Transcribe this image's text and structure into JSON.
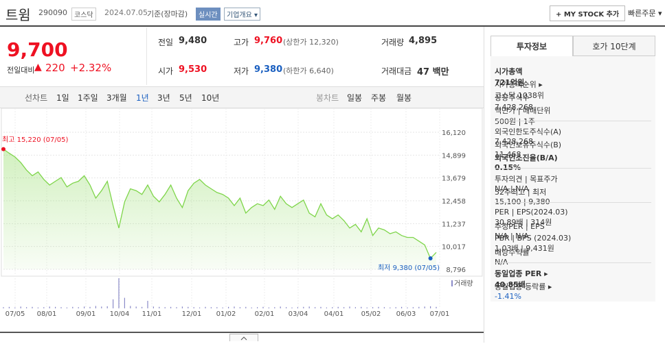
{
  "header": {
    "name": "트윔",
    "code": "290090",
    "market": "코스닥",
    "date": "2024.07.05",
    "date_note": "기준(장마감)",
    "realtime": "실시간",
    "company_info": "기업개요 ▾",
    "my_stock": "+ MY STOCK 추가",
    "quick_order": "빠른주문 ▾"
  },
  "quote": {
    "price": "9,700",
    "change_label": "전일대비",
    "change_arrow": "▲",
    "change": "220",
    "change_pct": "+2.32%"
  },
  "summary": [
    [
      {
        "label": "전일",
        "value": "9,480"
      },
      {
        "label": "고가",
        "value": "9,760",
        "note": "(상한가 12,320)"
      },
      {
        "label": "거래량",
        "value": "4,895"
      }
    ],
    [
      {
        "label": "시가",
        "value": "9,530"
      },
      {
        "label": "저가",
        "value": "9,380",
        "note": "(하한가 6,640)"
      },
      {
        "label": "거래대금",
        "value": "47 백만"
      }
    ]
  ],
  "tabs": {
    "line": "선차트",
    "periods": [
      "1일",
      "1주일",
      "3개월",
      "1년",
      "3년",
      "5년",
      "10년"
    ],
    "candle": "봉차트",
    "candle_periods": [
      "일봉",
      "주봉",
      "월봉"
    ]
  },
  "chart_data": {
    "type": "area",
    "color": "#7ed54a",
    "values": [
      15220,
      15000,
      14800,
      14500,
      14100,
      13800,
      14000,
      13600,
      13300,
      13500,
      13700,
      13200,
      13400,
      13500,
      13800,
      13300,
      12600,
      13000,
      13500,
      12200,
      11000,
      12400,
      13100,
      13000,
      12800,
      13300,
      12700,
      12400,
      12800,
      13300,
      12600,
      12100,
      13000,
      13400,
      13600,
      13300,
      13100,
      12900,
      12800,
      12600,
      12200,
      12600,
      11800,
      12100,
      12300,
      12200,
      12500,
      12000,
      12700,
      12300,
      12100,
      12300,
      12500,
      11800,
      11600,
      12300,
      11700,
      11500,
      11700,
      11400,
      11000,
      11200,
      10800,
      11500,
      10600,
      11000,
      10900,
      10700,
      10800,
      10600,
      10500,
      10500,
      10300,
      10100,
      9380,
      9700
    ],
    "volume": [
      4,
      5,
      3,
      6,
      4,
      5,
      3,
      4,
      6,
      5,
      4,
      3,
      5,
      4,
      6,
      5,
      8,
      6,
      7,
      30,
      100,
      35,
      8,
      6,
      5,
      25,
      6,
      5,
      4,
      5,
      4,
      6,
      5,
      4,
      3,
      5,
      4,
      4,
      3,
      5,
      6,
      4,
      5,
      3,
      4,
      5,
      3,
      4,
      6,
      4,
      3,
      4,
      5,
      6,
      4,
      5,
      3,
      4,
      5,
      4,
      6,
      4,
      5,
      3,
      4,
      5,
      4,
      3,
      4,
      5,
      3,
      4,
      5,
      6,
      7,
      5
    ],
    "volume_label": "거래량",
    "ylim": [
      8796,
      16120
    ],
    "yticks": [
      {
        "value": 8796,
        "label": "8,796"
      },
      {
        "value": 10017,
        "label": "10,017"
      },
      {
        "value": 11237,
        "label": "11,237"
      },
      {
        "value": 12458,
        "label": "12,458"
      },
      {
        "value": 13679,
        "label": "13,679"
      },
      {
        "value": 14899,
        "label": "14,899"
      },
      {
        "value": 16120,
        "label": "16,120"
      }
    ],
    "x_labels": [
      "07/05",
      "08/01",
      "09/01",
      "10/04",
      "11/01",
      "12/01",
      "01/02",
      "02/01",
      "03/04",
      "04/01",
      "05/02",
      "06/03",
      "07/01"
    ],
    "annotations": {
      "high": "최고 15,220 (07/05)",
      "low": "최저 9,380 (07/05)"
    }
  },
  "side": {
    "tabs": [
      "투자정보",
      "호가 10단계"
    ],
    "groups": [
      [
        {
          "label": "시가총액",
          "value": "721억원"
        },
        {
          "label": "시가총액순위 ▸",
          "value": "코스닥 1038위"
        },
        {
          "label": "상장주식수",
          "value": "7,428,268"
        },
        {
          "label": "액면가 | 매매단위",
          "value": "500원 | 1주"
        }
      ],
      [
        {
          "label": "외국인한도주식수(A)",
          "value": "7,428,268"
        },
        {
          "label": "외국인보유주식수(B)",
          "value": "11,468"
        },
        {
          "label": "외국인소진율(B/A)",
          "value": "0.15%"
        }
      ],
      [
        {
          "label": "투자의견 | 목표주가",
          "value": "N/A | N/A"
        },
        {
          "label": "52주최고 | 최저",
          "value": "15,100 | 9,380"
        }
      ],
      [
        {
          "label": "PER | EPS(2024.03)",
          "value": "30.89배 | 314원"
        },
        {
          "label": "추정PER | EPS",
          "value": "N/A | N/A"
        },
        {
          "label": "PBR | BPS (2024.03)",
          "value": "1.03배 | 9,431원"
        },
        {
          "label": "배당수익률",
          "value": "N/A"
        }
      ],
      [
        {
          "label": "동일업종 PER ▸",
          "value": "40.85배"
        },
        {
          "label": "동일업종 등락률 ▸",
          "value": "-1.41%"
        }
      ]
    ]
  }
}
